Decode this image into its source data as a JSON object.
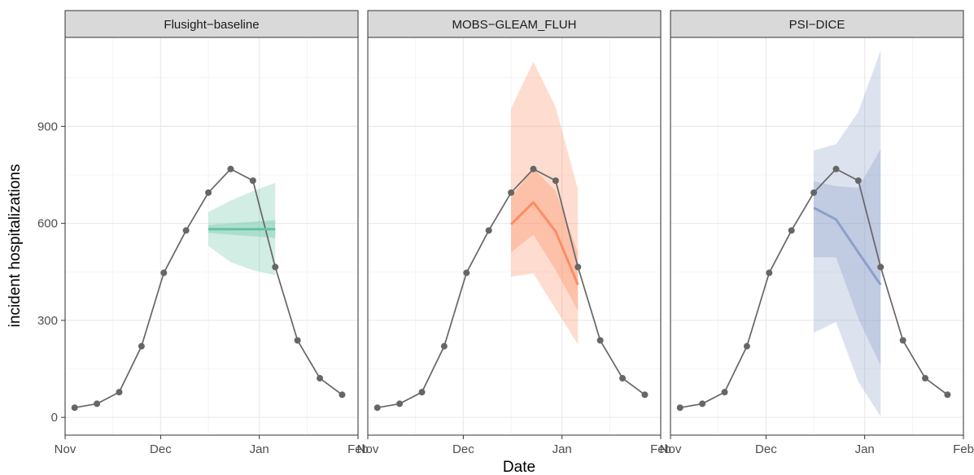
{
  "chart_data": {
    "type": "line",
    "xlabel": "Date",
    "ylabel": "incident hospitalizations",
    "x_ticks": [
      "Nov",
      "Dec",
      "Jan",
      "Feb"
    ],
    "y_ticks": [
      0,
      300,
      600,
      900
    ],
    "xlim": [
      "2023-11-01",
      "2024-02-01"
    ],
    "ylim": [
      -55,
      1175
    ],
    "observed": {
      "x": [
        "2023-11-04",
        "2023-11-11",
        "2023-11-18",
        "2023-11-25",
        "2023-12-02",
        "2023-12-09",
        "2023-12-16",
        "2023-12-23",
        "2023-12-30",
        "2024-01-06",
        "2024-01-13",
        "2024-01-20",
        "2024-01-27"
      ],
      "y": [
        30,
        42,
        78,
        220,
        447,
        578,
        695,
        768,
        732,
        465,
        238,
        121,
        70
      ]
    },
    "panels": [
      {
        "title": "Flusight−baseline",
        "color": "#66c2a5",
        "forecast_x": [
          "2023-12-16",
          "2023-12-23",
          "2023-12-30",
          "2024-01-06"
        ],
        "median": [
          582,
          582,
          582,
          582
        ],
        "interval_50": {
          "lower": [
            570,
            565,
            560,
            555
          ],
          "upper": [
            595,
            600,
            605,
            610
          ]
        },
        "interval_95": {
          "lower": [
            530,
            480,
            455,
            440
          ],
          "upper": [
            635,
            670,
            700,
            725
          ]
        }
      },
      {
        "title": "MOBS−GLEAM_FLUH",
        "color": "#fc8d62",
        "forecast_x": [
          "2023-12-16",
          "2023-12-23",
          "2023-12-30",
          "2024-01-06"
        ],
        "median": [
          597,
          665,
          575,
          410
        ],
        "interval_50": {
          "lower": [
            510,
            565,
            455,
            330
          ],
          "upper": [
            680,
            770,
            700,
            510
          ]
        },
        "interval_95": {
          "lower": [
            435,
            445,
            335,
            225
          ],
          "upper": [
            955,
            1100,
            960,
            705
          ]
        }
      },
      {
        "title": "PSI−DICE",
        "color": "#8da0cb",
        "forecast_x": [
          "2023-12-16",
          "2023-12-23",
          "2023-12-30",
          "2024-01-06"
        ],
        "median": [
          648,
          612,
          510,
          410
        ],
        "interval_50": {
          "lower": [
            495,
            495,
            305,
            160
          ],
          "upper": [
            730,
            715,
            710,
            830
          ]
        },
        "interval_95": {
          "lower": [
            262,
            295,
            110,
            2
          ],
          "upper": [
            825,
            845,
            945,
            1135
          ]
        }
      }
    ]
  }
}
